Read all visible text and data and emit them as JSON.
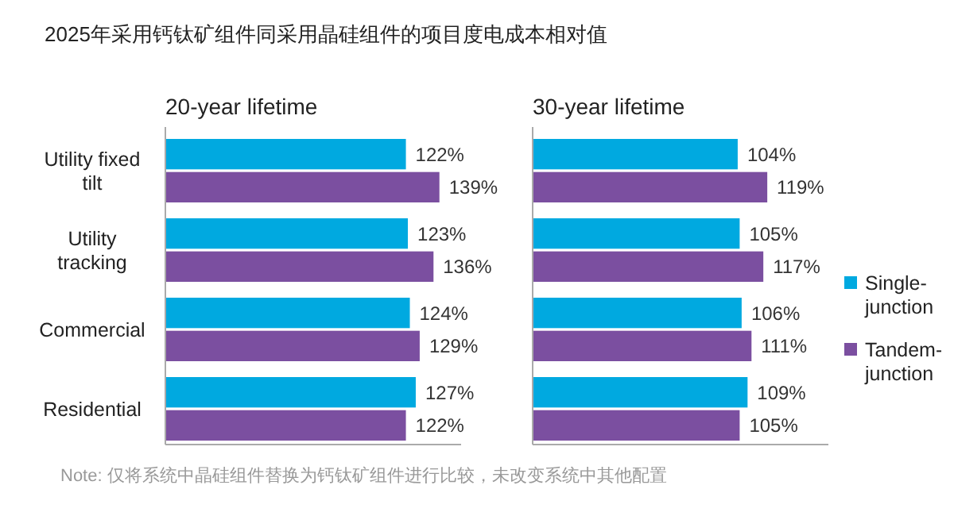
{
  "chart_data": [
    {
      "type": "bar",
      "orientation": "horizontal",
      "title": "2025年采用钙钛矿组件同采用晶硅组件的项目度电成本相对值",
      "subtitle": "20-year lifetime",
      "categories": [
        "Utility fixed tilt",
        "Utility tracking",
        "Commercial",
        "Residential"
      ],
      "xlim": [
        0,
        150
      ],
      "tick_labels": "y",
      "legend": false,
      "series": [
        {
          "color": "#00a9e0",
          "values": [
            122,
            123,
            124,
            127
          ],
          "value_labels": [
            "122%",
            "123%",
            "124%",
            "127%"
          ]
        },
        {
          "color": "#7b4fa0",
          "values": [
            139,
            136,
            129,
            122
          ],
          "value_labels": [
            "139%",
            "136%",
            "129%",
            "122%"
          ]
        }
      ],
      "annotations": [
        "Note: 仅将系统中晶硅组件替换为钙钛矿组件进行比较，未改变系统中其他配置"
      ]
    },
    {
      "type": "bar",
      "orientation": "horizontal",
      "subtitle": "30-year lifetime",
      "categories": [
        null,
        null,
        null,
        null
      ],
      "xlim": [
        0,
        150
      ],
      "tick_labels": false,
      "legend": "right",
      "series": [
        {
          "name": "Single-junction",
          "color": "#00a9e0",
          "values": [
            104,
            105,
            106,
            109
          ],
          "value_labels": [
            "104%",
            "105%",
            "106%",
            "109%"
          ]
        },
        {
          "name": "Tandem-junction",
          "color": "#7b4fa0",
          "values": [
            119,
            117,
            111,
            105
          ],
          "value_labels": [
            "119%",
            "117%",
            "111%",
            "105%"
          ]
        }
      ]
    }
  ]
}
